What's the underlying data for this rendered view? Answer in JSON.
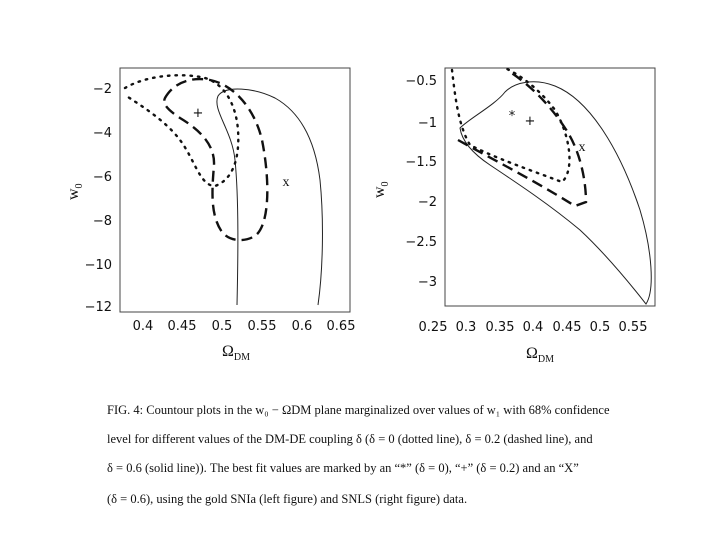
{
  "left": {
    "yticks": [
      "−2",
      "−4",
      "−6",
      "−8",
      "−10",
      "−12"
    ],
    "xticks": [
      "0.4",
      "0.45",
      "0.5",
      "0.55",
      "0.6",
      "0.65"
    ],
    "y_label": "w",
    "y_label_sub": "0",
    "x_label": "Ω",
    "x_label_sub": "DM",
    "markers": [
      "+",
      "x"
    ]
  },
  "right": {
    "yticks": [
      "−0.5",
      "−1",
      "−1.5",
      "−2",
      "−2.5",
      "−3"
    ],
    "xticks": [
      "0.25",
      "0.3",
      "0.35",
      "0.4",
      "0.45",
      "0.5",
      "0.55"
    ],
    "y_label": "w",
    "y_label_sub": "0",
    "x_label": "Ω",
    "x_label_sub": "DM",
    "markers": [
      "*",
      "+",
      "x"
    ]
  },
  "caption": {
    "lines": [
      "FIG. 4:  Countour plots in the w₀ − ΩDM plane marginalized over values of w₁ with 68% confidence",
      "level for different values of the DM-DE coupling δ (δ = 0 (dotted line), δ = 0.2 (dashed line), and",
      "δ = 0.6 (solid line)). The best fit values are marked by an “*” (δ = 0), “+” (δ = 0.2) and an “X”",
      "(δ = 0.6), using the gold SNIa (left figure) and SNLS (right figure) data."
    ]
  }
}
